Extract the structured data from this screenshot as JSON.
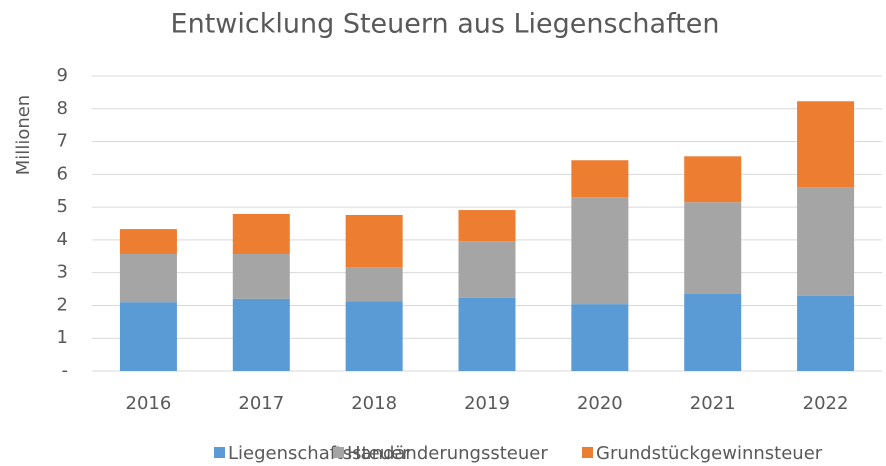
{
  "chart_data": {
    "type": "stacked_bar",
    "title": "Entwicklung Steuern aus Liegenschaften",
    "y_label": "Millionen",
    "categories": [
      "2016",
      "2017",
      "2018",
      "2019",
      "2020",
      "2021",
      "2022"
    ],
    "series": [
      {
        "name": "Liegenschaftssteuer",
        "color": "#5b9bd5",
        "values": [
          2.1,
          2.2,
          2.13,
          2.23,
          2.04,
          2.35,
          2.29
        ]
      },
      {
        "name": "Handänderungssteuer",
        "color": "#a5a5a5",
        "values": [
          1.47,
          1.37,
          1.04,
          1.73,
          3.26,
          2.8,
          3.32
        ]
      },
      {
        "name": "Grundstückgewinnsteuer",
        "color": "#ed7d31",
        "values": [
          0.76,
          1.22,
          1.59,
          0.95,
          1.13,
          1.4,
          2.62
        ]
      }
    ],
    "ylim": [
      0,
      9
    ],
    "yticks": [
      {
        "value": 0,
        "label": "-"
      },
      1,
      2,
      3,
      4,
      5,
      6,
      7,
      8,
      9
    ],
    "grid": true,
    "legend": "bottom"
  }
}
